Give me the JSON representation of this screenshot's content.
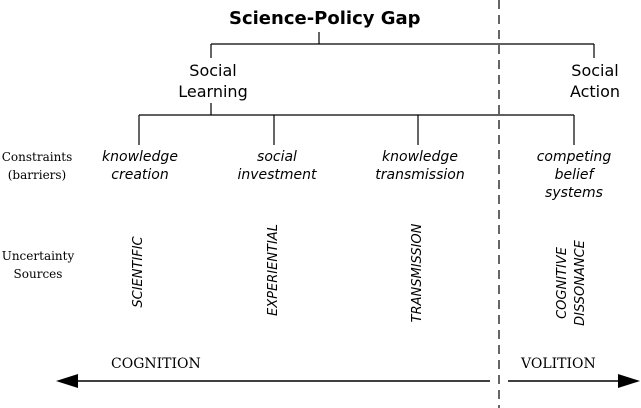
{
  "title": "Science-Policy Gap",
  "groups": {
    "social_learning": [
      "Social",
      "Learning"
    ],
    "social_action": [
      "Social",
      "Action"
    ]
  },
  "row_labels": {
    "constraints": [
      "Constraints",
      "(barriers)"
    ],
    "uncertainty": [
      "Uncertainty",
      "Sources"
    ]
  },
  "constraints": [
    [
      "knowledge",
      "creation"
    ],
    [
      "social",
      "investment"
    ],
    [
      "knowledge",
      "transmission"
    ],
    [
      "competing",
      "belief",
      "systems"
    ]
  ],
  "uncertainty_sources": [
    [
      "SCIENTIFIC"
    ],
    [
      "EXPERIENTIAL"
    ],
    [
      "TRANSMISSION"
    ],
    [
      "COGNITIVE",
      "DISSONANCE"
    ]
  ],
  "axis": {
    "left_label": "COGNITION",
    "right_label": "VOLITION"
  }
}
